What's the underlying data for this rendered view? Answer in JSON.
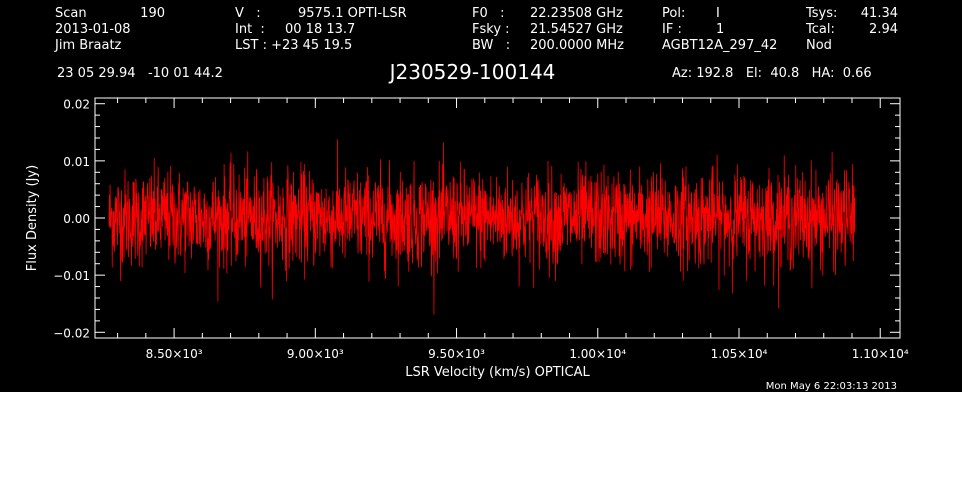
{
  "header": {
    "col1": [
      "Scan",
      "2013-01-08",
      "Jim Braatz"
    ],
    "scan_number": "190",
    "col2": [
      "V   :",
      "Int  :",
      "LST : +23 45 19.5"
    ],
    "col2_vals": [
      "9575.1 OPTI-LSR",
      "00 18 13.7"
    ],
    "col3": [
      "F0   :",
      "Fsky :",
      "BW   :"
    ],
    "col3_vals": [
      "22.23508 GHz",
      "21.54527 GHz",
      "200.0000 MHz"
    ],
    "col4": [
      "Pol:",
      "IF :",
      "AGBT12A_297_42"
    ],
    "col4_vals": [
      "I",
      "1"
    ],
    "col5": [
      "Tsys:",
      "Tcal:",
      "Nod"
    ],
    "col5_vals": [
      "41.34",
      "2.94"
    ],
    "coords": "23 05 29.94   -10 01 44.2",
    "source_title": "J230529-100144",
    "az_el_ha": "Az: 192.8   El:  40.8   HA:  0.66",
    "timestamp": "Mon May  6 22:03:13 2013"
  },
  "chart_data": {
    "type": "line",
    "xlabel": "LSR Velocity (km/s) OPTICAL",
    "ylabel": "Flux Density (Jy)",
    "xlim": [
      8220,
      11070
    ],
    "ylim": [
      -0.021,
      0.021
    ],
    "x_ticks": [
      8500,
      9000,
      9500,
      10000,
      10500,
      11000
    ],
    "x_tick_labels": [
      "8.50×10³",
      "9.00×10³",
      "9.50×10³",
      "1.00×10⁴",
      "1.05×10⁴",
      "1.10×10⁴"
    ],
    "y_ticks": [
      0.02,
      0.01,
      0.0,
      -0.01,
      -0.02
    ],
    "y_tick_labels": [
      "0.02",
      "0.01",
      "0.00",
      "−0.01",
      "−0.02"
    ],
    "series": [
      {
        "color": "#ff0000",
        "x_range": [
          8270,
          10910
        ],
        "mean": 0.0,
        "rms": 0.0042
      }
    ]
  }
}
